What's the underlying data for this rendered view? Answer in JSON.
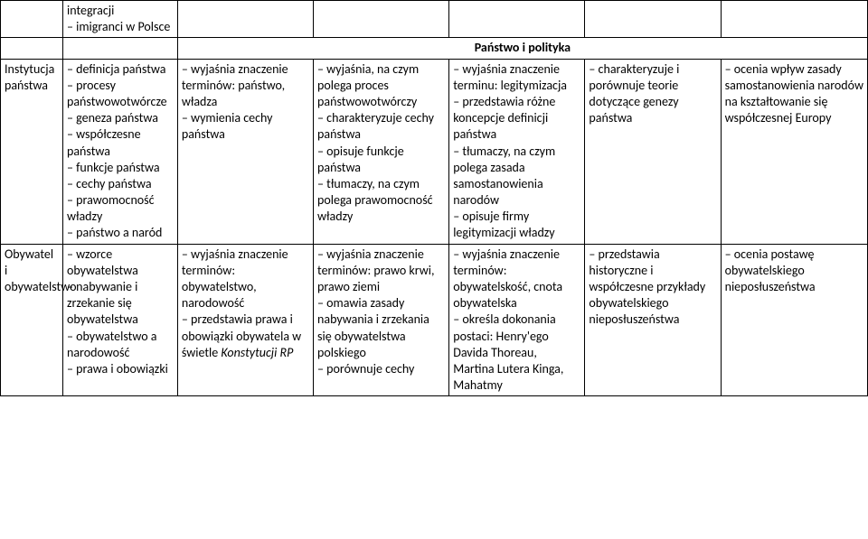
{
  "row_top": {
    "c0": "",
    "c1": "integracji\n– imigranci w Polsce",
    "c2": "",
    "c3": "",
    "c4": "",
    "c5": "",
    "c6": ""
  },
  "section_title": "Państwo i polityka",
  "row_instytucja": {
    "c0": "Instytucja państwa",
    "c1": "– definicja państwa\n– procesy państwowotwórcze\n– geneza państwa\n– współczesne państwa\n– funkcje państwa\n– cechy państwa\n– prawomocność władzy\n– państwo a naród",
    "c2": "– wyjaśnia znaczenie terminów: państwo, władza\n– wymienia cechy państwa",
    "c3": "– wyjaśnia, na czym polega proces państwowotwórczy\n– charakteryzuje cechy państwa\n– opisuje funkcje państwa\n– tłumaczy, na czym polega prawomocność władzy",
    "c4": "– wyjaśnia znaczenie terminu: legitymizacja\n– przedstawia różne koncepcje definicji państwa\n– tłumaczy, na czym polega zasada samostanowienia narodów\n– opisuje firmy legitymizacji władzy",
    "c5": "– charakteryzuje i porównuje teorie dotyczące genezy państwa",
    "c6": "– ocenia wpływ zasady samostanowienia narodów na kształtowanie się współczesnej Europy"
  },
  "row_obywatel": {
    "c0": "Obywatel i obywatelstwo",
    "c1": "– wzorce obywatelstwa\n– nabywanie i zrzekanie się obywatelstwa\n– obywatelstwo a narodowość\n– prawa i obowiązki",
    "c2": "– wyjaśnia znaczenie terminów: obywatelstwo, narodowość\n– przedstawia prawa i obowiązki obywatela w świetle Konstytucji RP",
    "c3": "– wyjaśnia znaczenie terminów: prawo krwi, prawo ziemi\n– omawia zasady nabywania i zrzekania się obywatelstwa polskiego\n– porównuje cechy",
    "c4": "– wyjaśnia znaczenie terminów: obywatelskość, cnota obywatelska\n– określa dokonania postaci: Henry'ego Davida Thoreau, Martina Lutera Kinga, Mahatmy",
    "c5": "– przedstawia historyczne i współczesne przykłady obywatelskiego nieposłuszeństwa",
    "c6": "– ocenia postawę obywatelskiego nieposłuszeństwa"
  },
  "italic_phrase": "Konstytucji RP"
}
